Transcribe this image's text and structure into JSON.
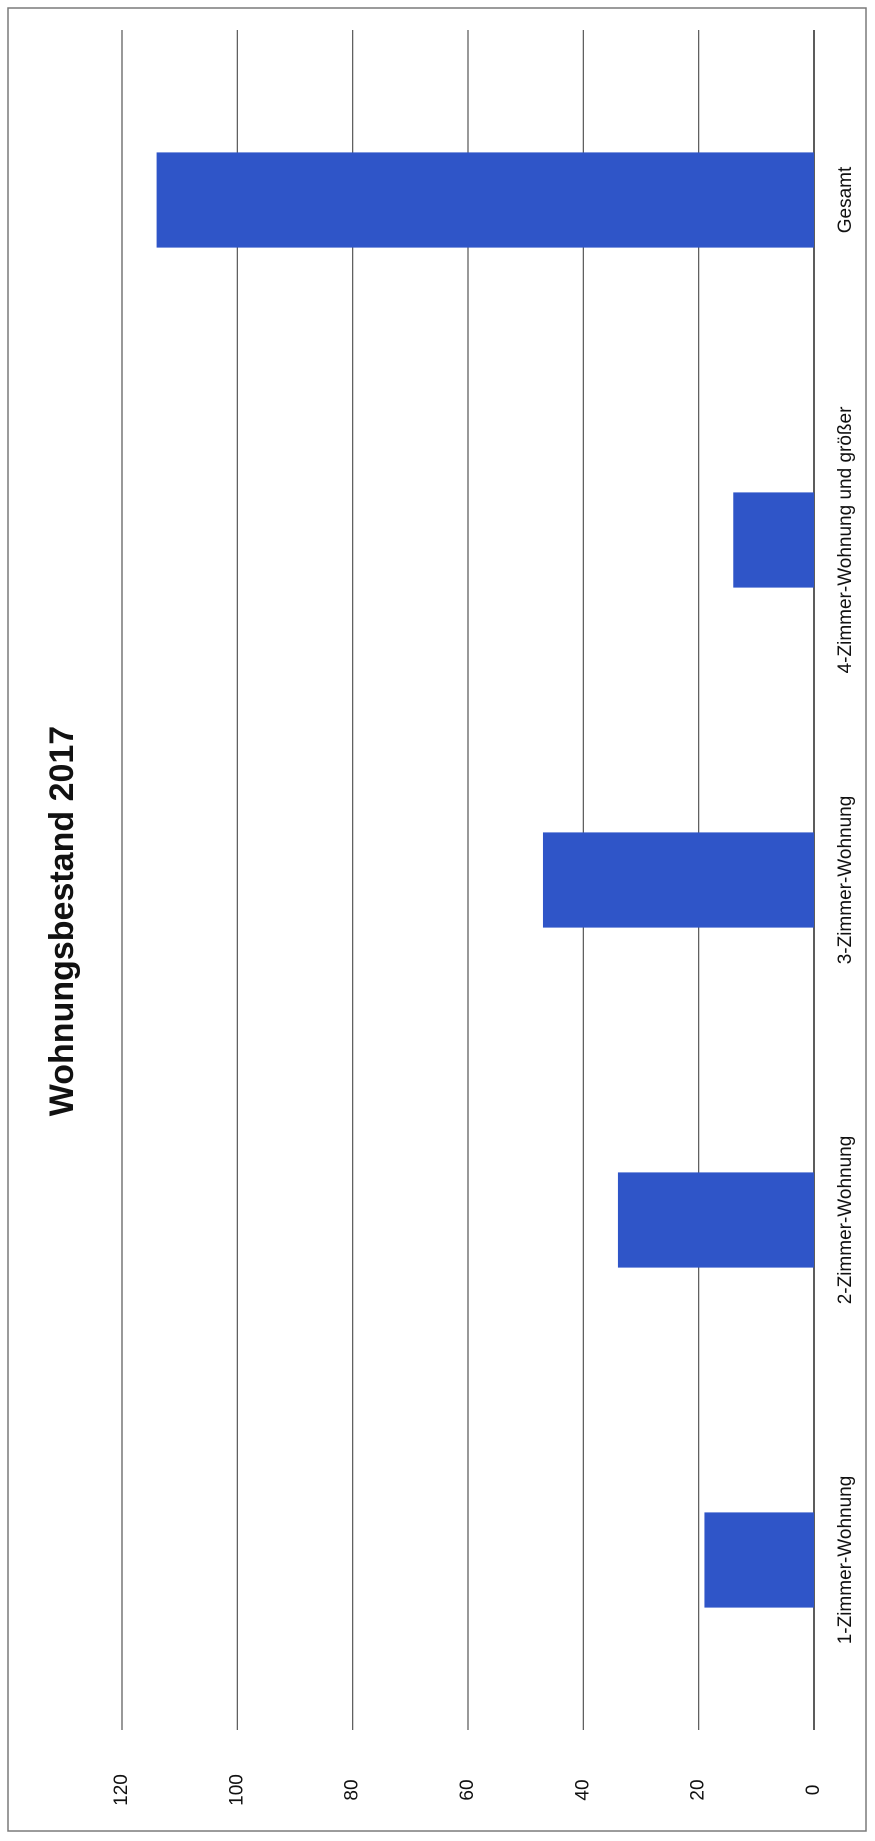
{
  "chart_data": {
    "type": "bar",
    "orientation": "rotated-90-clockwise",
    "title": "Wohnungsbestand 2017",
    "categories": [
      "1-Zimmer-Wohnung",
      "2-Zimmer-Wohnung",
      "3-Zimmer-Wohnung",
      "4-Zimmer-Wohnung und größer",
      "Gesamt"
    ],
    "values": [
      19,
      34,
      47,
      14,
      114
    ],
    "ylim": [
      0,
      120
    ],
    "yticks": [
      "0",
      "20",
      "40",
      "60",
      "80",
      "100",
      "120"
    ],
    "xlabel": "",
    "ylabel": "",
    "grid": true,
    "legend": "none",
    "bar_color": "#2f55c8",
    "gridline_color": "#555555",
    "frame_color": "#7a7a7a"
  }
}
